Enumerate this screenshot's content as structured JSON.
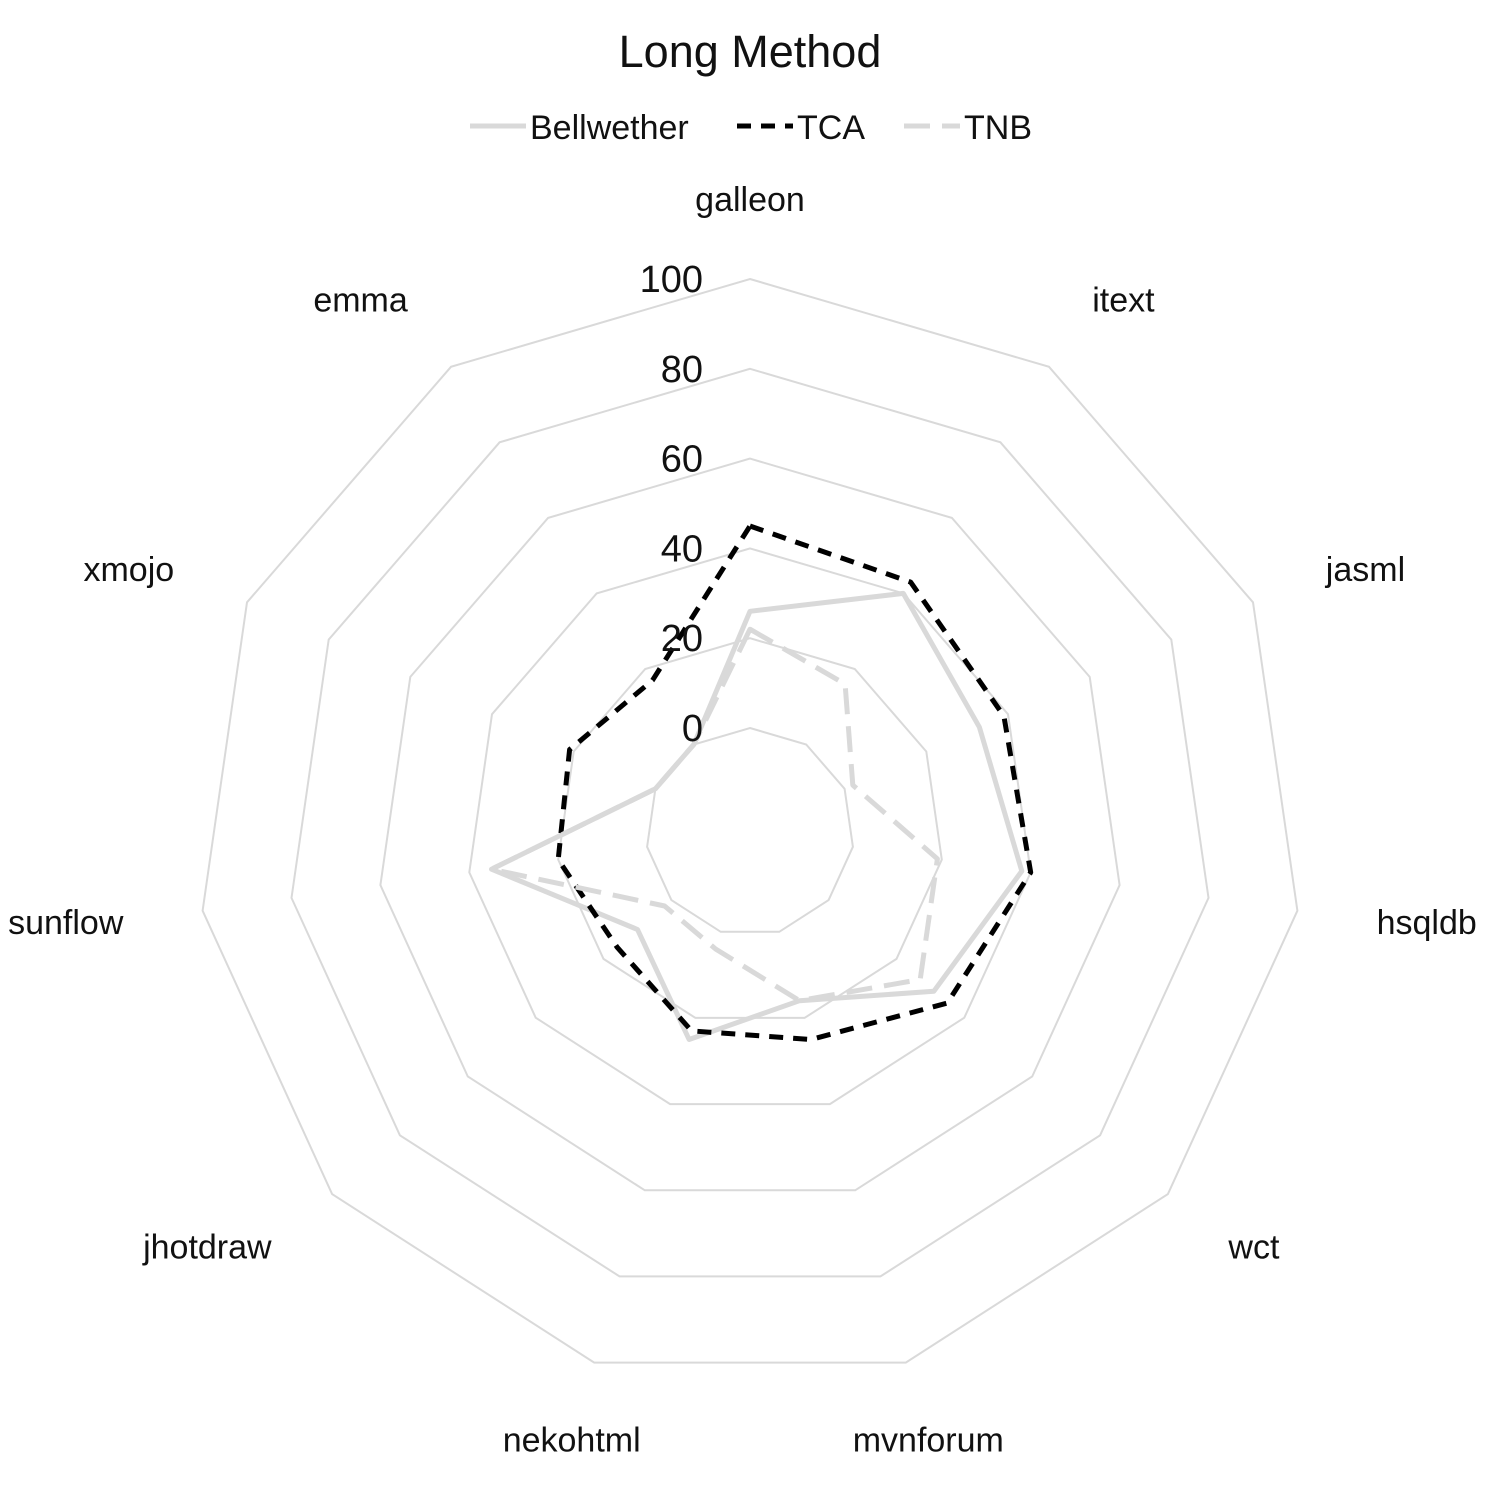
{
  "chart_data": {
    "type": "radar",
    "title": "Long Method",
    "categories": [
      "galleon",
      "itext",
      "jasml",
      "hsqldb",
      "wct",
      "mvnforum",
      "nekohtml",
      "jhotdraw",
      "sunflow",
      "xmojo",
      "emma"
    ],
    "radial_ticks": [
      "0",
      "20",
      "40",
      "60",
      "80",
      "100"
    ],
    "tick_values": [
      0,
      20,
      40,
      60,
      80,
      100
    ],
    "rlim": [
      0,
      100
    ],
    "grid": true,
    "legend_position": "top",
    "series": [
      {
        "name": "Bellwether",
        "color": "#d9d9d9",
        "dash": "solid",
        "values": [
          26,
          40,
          33,
          38,
          31,
          16,
          25,
          10,
          35,
          0,
          0
        ]
      },
      {
        "name": "TCA",
        "color": "#000000",
        "dash": "dashed",
        "values": [
          45,
          43,
          39,
          40,
          35,
          25,
          23,
          16,
          20,
          21,
          17
        ]
      },
      {
        "name": "TNB",
        "color": "#d9d9d9",
        "dash": "longdash",
        "values": [
          22,
          16,
          2,
          19,
          27,
          16,
          4,
          2,
          35,
          0,
          0
        ]
      }
    ]
  }
}
